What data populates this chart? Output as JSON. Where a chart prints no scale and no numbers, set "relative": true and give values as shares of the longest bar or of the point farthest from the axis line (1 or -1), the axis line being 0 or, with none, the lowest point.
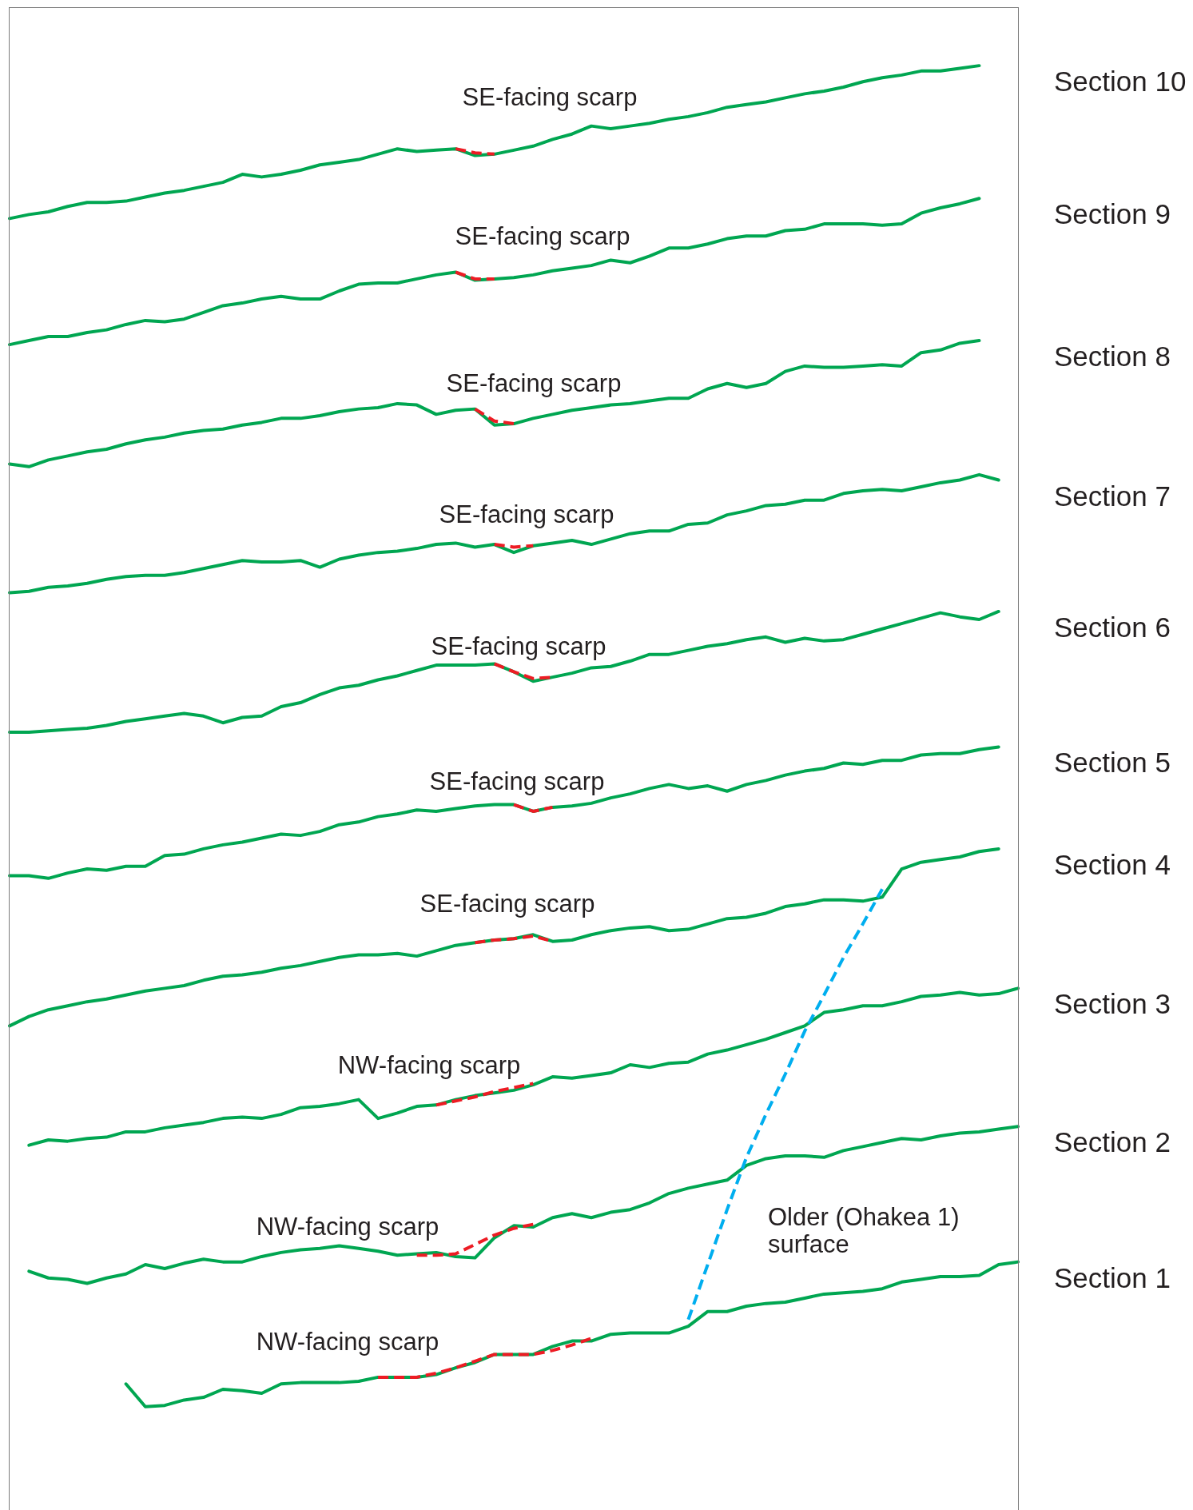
{
  "chart_data": {
    "type": "line",
    "relative": true,
    "categories": [
      null,
      null,
      null,
      null,
      null,
      null,
      null,
      null,
      null,
      null,
      null,
      null,
      null,
      null,
      null,
      null,
      null,
      null,
      null,
      null,
      null,
      null,
      null,
      null,
      null,
      null,
      null,
      null,
      null,
      null,
      null,
      null,
      null,
      null,
      null,
      null,
      null,
      null,
      null,
      null,
      null,
      null,
      null,
      null,
      null,
      null,
      null,
      null,
      null,
      null,
      null,
      null,
      null
    ],
    "series": [
      {
        "name": "Section 10",
        "color": "#00a651",
        "values": [
          0.886,
          0.889,
          0.891,
          0.895,
          0.898,
          0.898,
          0.899,
          0.902,
          0.905,
          0.907,
          0.91,
          0.913,
          0.919,
          0.917,
          0.919,
          0.922,
          0.926,
          0.928,
          0.93,
          0.934,
          0.938,
          0.936,
          0.937,
          0.938,
          0.933,
          0.934,
          0.937,
          0.94,
          0.945,
          0.949,
          0.955,
          0.953,
          0.955,
          0.957,
          0.96,
          0.962,
          0.965,
          0.969,
          0.971,
          0.973,
          0.976,
          0.979,
          0.981,
          0.984,
          0.988,
          0.991,
          0.993,
          0.996,
          0.996,
          0.998,
          1,
          null,
          null
        ]
      },
      {
        "name": "Section 9",
        "color": "#00a651",
        "values": [
          0.792,
          0.795,
          0.798,
          0.798,
          0.801,
          0.803,
          0.807,
          0.81,
          0.809,
          0.811,
          0.816,
          0.821,
          0.823,
          0.826,
          0.828,
          0.826,
          0.826,
          0.832,
          0.837,
          0.838,
          0.838,
          0.841,
          0.844,
          0.846,
          0.84,
          0.841,
          0.842,
          0.844,
          0.847,
          0.849,
          0.851,
          0.855,
          0.853,
          0.858,
          0.864,
          0.864,
          0.867,
          0.871,
          0.873,
          0.873,
          0.877,
          0.878,
          0.882,
          0.882,
          0.882,
          0.881,
          0.882,
          0.89,
          0.894,
          0.897,
          0.901,
          null,
          null
        ]
      },
      {
        "name": "Section 8",
        "color": "#00a651",
        "values": [
          0.703,
          0.701,
          0.706,
          0.709,
          0.712,
          0.714,
          0.718,
          0.721,
          0.723,
          0.726,
          0.728,
          0.729,
          0.732,
          0.734,
          0.737,
          0.737,
          0.739,
          0.742,
          0.744,
          0.745,
          0.748,
          0.747,
          0.74,
          0.743,
          0.744,
          0.732,
          0.733,
          0.737,
          0.74,
          0.743,
          0.745,
          0.747,
          0.748,
          0.75,
          0.752,
          0.752,
          0.759,
          0.763,
          0.76,
          0.763,
          0.772,
          0.776,
          0.775,
          0.775,
          0.776,
          0.777,
          0.776,
          0.786,
          0.788,
          0.793,
          0.795,
          null,
          null
        ]
      },
      {
        "name": "Section 7",
        "color": "#00a651",
        "values": [
          0.607,
          0.608,
          0.611,
          0.612,
          0.614,
          0.617,
          0.619,
          0.62,
          0.62,
          0.622,
          0.625,
          0.628,
          0.631,
          0.63,
          0.63,
          0.631,
          0.626,
          0.632,
          0.635,
          0.637,
          0.638,
          0.64,
          0.643,
          0.644,
          0.641,
          0.643,
          0.637,
          0.642,
          0.644,
          0.646,
          0.643,
          0.647,
          0.651,
          0.653,
          0.653,
          0.658,
          0.659,
          0.665,
          0.668,
          0.672,
          0.673,
          0.676,
          0.676,
          0.681,
          0.683,
          0.684,
          0.683,
          0.686,
          0.689,
          0.691,
          0.695,
          0.691,
          null
        ]
      },
      {
        "name": "Section 6",
        "color": "#00a651",
        "values": [
          0.503,
          0.503,
          0.504,
          0.505,
          0.506,
          0.508,
          0.511,
          0.513,
          0.515,
          0.517,
          0.515,
          0.51,
          0.514,
          0.515,
          0.522,
          0.525,
          0.531,
          0.536,
          0.538,
          0.542,
          0.545,
          0.549,
          0.553,
          0.553,
          0.553,
          0.554,
          0.548,
          0.541,
          0.544,
          0.547,
          0.551,
          0.552,
          0.556,
          0.561,
          0.561,
          0.564,
          0.567,
          0.569,
          0.572,
          0.574,
          0.57,
          0.573,
          0.571,
          0.572,
          0.576,
          0.58,
          0.584,
          0.588,
          0.592,
          0.589,
          0.587,
          0.593,
          null
        ]
      },
      {
        "name": "Section 5",
        "color": "#00a651",
        "values": [
          0.396,
          0.396,
          0.394,
          0.398,
          0.401,
          0.4,
          0.403,
          0.403,
          0.411,
          0.412,
          0.416,
          0.419,
          0.421,
          0.424,
          0.427,
          0.426,
          0.429,
          0.434,
          0.436,
          0.44,
          0.442,
          0.445,
          0.444,
          0.446,
          0.448,
          0.449,
          0.449,
          0.444,
          0.447,
          0.448,
          0.45,
          0.454,
          0.457,
          0.461,
          0.464,
          0.461,
          0.463,
          0.459,
          0.464,
          0.467,
          0.471,
          0.474,
          0.476,
          0.48,
          0.479,
          0.482,
          0.482,
          0.486,
          0.487,
          0.487,
          0.49,
          0.492,
          null
        ]
      },
      {
        "name": "Section 4",
        "color": "#00a651",
        "values": [
          0.284,
          0.291,
          0.296,
          0.299,
          0.302,
          0.304,
          0.307,
          0.31,
          0.312,
          0.314,
          0.318,
          0.321,
          0.322,
          0.324,
          0.327,
          0.329,
          0.332,
          0.335,
          0.337,
          0.337,
          0.338,
          0.336,
          0.34,
          0.344,
          0.346,
          0.348,
          0.349,
          0.352,
          0.347,
          0.348,
          0.352,
          0.355,
          0.357,
          0.358,
          0.355,
          0.356,
          0.36,
          0.364,
          0.365,
          0.368,
          0.373,
          0.375,
          0.378,
          0.378,
          0.377,
          0.38,
          0.401,
          0.406,
          0.408,
          0.41,
          0.414,
          0.416,
          null
        ]
      },
      {
        "name": "Section 3",
        "color": "#00a651",
        "values": [
          null,
          0.195,
          0.199,
          0.198,
          0.2,
          0.201,
          0.205,
          0.205,
          0.208,
          0.21,
          0.212,
          0.215,
          0.216,
          0.215,
          0.218,
          0.223,
          0.224,
          0.226,
          0.229,
          0.215,
          0.219,
          0.224,
          0.225,
          0.229,
          0.232,
          0.234,
          0.236,
          0.24,
          0.246,
          0.245,
          0.247,
          0.249,
          0.255,
          0.253,
          0.256,
          0.257,
          0.263,
          0.266,
          0.27,
          0.274,
          0.279,
          0.284,
          0.294,
          0.296,
          0.299,
          0.299,
          0.302,
          0.306,
          0.307,
          0.309,
          0.307,
          0.308,
          0.312
        ]
      },
      {
        "name": "Section 2",
        "color": "#00a651",
        "values": [
          null,
          0.101,
          0.096,
          0.095,
          0.092,
          0.096,
          0.099,
          0.106,
          0.103,
          0.107,
          0.11,
          0.108,
          0.108,
          0.112,
          0.115,
          0.117,
          0.118,
          0.12,
          0.118,
          0.116,
          0.113,
          0.114,
          0.115,
          0.112,
          0.111,
          0.126,
          0.135,
          0.134,
          0.141,
          0.144,
          0.141,
          0.145,
          0.147,
          0.152,
          0.159,
          0.163,
          0.166,
          0.169,
          0.18,
          0.185,
          0.187,
          0.187,
          0.186,
          0.191,
          0.194,
          0.197,
          0.2,
          0.199,
          0.202,
          0.204,
          0.205,
          0.207,
          0.209
        ]
      },
      {
        "name": "Section 1",
        "color": "#00a651",
        "values": [
          null,
          null,
          null,
          null,
          null,
          null,
          0.017,
          0,
          0.001,
          0.005,
          0.007,
          0.013,
          0.012,
          0.01,
          0.017,
          0.018,
          0.018,
          0.018,
          0.019,
          0.022,
          0.022,
          0.022,
          0.024,
          0.029,
          0.033,
          0.039,
          0.039,
          0.039,
          0.045,
          0.049,
          0.049,
          0.054,
          0.055,
          0.055,
          0.055,
          0.06,
          0.071,
          0.071,
          0.075,
          0.077,
          0.078,
          0.081,
          0.084,
          0.085,
          0.086,
          0.088,
          0.093,
          0.095,
          0.097,
          0.097,
          0.098,
          0.106,
          0.108
        ]
      },
      {
        "color": "#ed1c24",
        "line_style": "dashed",
        "values": [
          null,
          null,
          null,
          null,
          null,
          null,
          null,
          null,
          null,
          null,
          null,
          null,
          null,
          null,
          null,
          null,
          null,
          null,
          null,
          null,
          null,
          null,
          null,
          0.938,
          0.935,
          0.934,
          null,
          null,
          null,
          null,
          null,
          null,
          null,
          null,
          null,
          null,
          null,
          null,
          null,
          null,
          null,
          null,
          null,
          null,
          null,
          null,
          null,
          null,
          null,
          null,
          null,
          null,
          null
        ]
      },
      {
        "color": "#ed1c24",
        "line_style": "dashed",
        "values": [
          null,
          null,
          null,
          null,
          null,
          null,
          null,
          null,
          null,
          null,
          null,
          null,
          null,
          null,
          null,
          null,
          null,
          null,
          null,
          null,
          null,
          null,
          null,
          0.846,
          0.841,
          0.841,
          null,
          null,
          null,
          null,
          null,
          null,
          null,
          null,
          null,
          null,
          null,
          null,
          null,
          null,
          null,
          null,
          null,
          null,
          null,
          null,
          null,
          null,
          null,
          null,
          null,
          null,
          null
        ]
      },
      {
        "color": "#ed1c24",
        "line_style": "dashed",
        "values": [
          null,
          null,
          null,
          null,
          null,
          null,
          null,
          null,
          null,
          null,
          null,
          null,
          null,
          null,
          null,
          null,
          null,
          null,
          null,
          null,
          null,
          null,
          null,
          null,
          0.744,
          0.735,
          0.733,
          null,
          null,
          null,
          null,
          null,
          null,
          null,
          null,
          null,
          null,
          null,
          null,
          null,
          null,
          null,
          null,
          null,
          null,
          null,
          null,
          null,
          null,
          null,
          null,
          null,
          null
        ]
      },
      {
        "color": "#ed1c24",
        "line_style": "dashed",
        "values": [
          null,
          null,
          null,
          null,
          null,
          null,
          null,
          null,
          null,
          null,
          null,
          null,
          null,
          null,
          null,
          null,
          null,
          null,
          null,
          null,
          null,
          null,
          null,
          null,
          null,
          0.643,
          0.641,
          0.642,
          null,
          null,
          null,
          null,
          null,
          null,
          null,
          null,
          null,
          null,
          null,
          null,
          null,
          null,
          null,
          null,
          null,
          null,
          null,
          null,
          null,
          null,
          null,
          null,
          null
        ]
      },
      {
        "color": "#ed1c24",
        "line_style": "dashed",
        "values": [
          null,
          null,
          null,
          null,
          null,
          null,
          null,
          null,
          null,
          null,
          null,
          null,
          null,
          null,
          null,
          null,
          null,
          null,
          null,
          null,
          null,
          null,
          null,
          null,
          null,
          0.554,
          0.548,
          0.543,
          0.544,
          null,
          null,
          null,
          null,
          null,
          null,
          null,
          null,
          null,
          null,
          null,
          null,
          null,
          null,
          null,
          null,
          null,
          null,
          null,
          null,
          null,
          null,
          null,
          null
        ]
      },
      {
        "color": "#ed1c24",
        "line_style": "dashed",
        "values": [
          null,
          null,
          null,
          null,
          null,
          null,
          null,
          null,
          null,
          null,
          null,
          null,
          null,
          null,
          null,
          null,
          null,
          null,
          null,
          null,
          null,
          null,
          null,
          null,
          null,
          null,
          0.449,
          0.444,
          0.447,
          null,
          null,
          null,
          null,
          null,
          null,
          null,
          null,
          null,
          null,
          null,
          null,
          null,
          null,
          null,
          null,
          null,
          null,
          null,
          null,
          null,
          null,
          null,
          null
        ]
      },
      {
        "color": "#ed1c24",
        "line_style": "dashed",
        "values": [
          null,
          null,
          null,
          null,
          null,
          null,
          null,
          null,
          null,
          null,
          null,
          null,
          null,
          null,
          null,
          null,
          null,
          null,
          null,
          null,
          null,
          null,
          null,
          null,
          0.346,
          0.348,
          0.349,
          0.351,
          0.347,
          null,
          null,
          null,
          null,
          null,
          null,
          null,
          null,
          null,
          null,
          null,
          null,
          null,
          null,
          null,
          null,
          null,
          null,
          null,
          null,
          null,
          null,
          null,
          null
        ]
      },
      {
        "color": "#ed1c24",
        "line_style": "dashed",
        "values": [
          null,
          null,
          null,
          null,
          null,
          null,
          null,
          null,
          null,
          null,
          null,
          null,
          null,
          null,
          null,
          null,
          null,
          null,
          null,
          null,
          null,
          null,
          0.225,
          0.228,
          0.231,
          0.235,
          0.238,
          0.241,
          null,
          null,
          null,
          null,
          null,
          null,
          null,
          null,
          null,
          null,
          null,
          null,
          null,
          null,
          null,
          null,
          null,
          null,
          null,
          null,
          null,
          null,
          null,
          null,
          null
        ]
      },
      {
        "color": "#ed1c24",
        "line_style": "dashed",
        "values": [
          null,
          null,
          null,
          null,
          null,
          null,
          null,
          null,
          null,
          null,
          null,
          null,
          null,
          null,
          null,
          null,
          null,
          null,
          null,
          null,
          null,
          0.113,
          0.113,
          0.114,
          0.121,
          0.128,
          0.133,
          0.136,
          null,
          null,
          null,
          null,
          null,
          null,
          null,
          null,
          null,
          null,
          null,
          null,
          null,
          null,
          null,
          null,
          null,
          null,
          null,
          null,
          null,
          null,
          null,
          null,
          null
        ]
      },
      {
        "color": "#ed1c24",
        "line_style": "dashed",
        "values": [
          null,
          null,
          null,
          null,
          null,
          null,
          null,
          null,
          null,
          null,
          null,
          null,
          null,
          null,
          null,
          null,
          null,
          null,
          null,
          0.022,
          0.022,
          0.022,
          0.025,
          0.029,
          0.034,
          0.039,
          0.039,
          0.039,
          0.042,
          0.046,
          0.051,
          null,
          null,
          null,
          null,
          null,
          null,
          null,
          null,
          null,
          null,
          null,
          null,
          null,
          null,
          null,
          null,
          null,
          null,
          null,
          null,
          null,
          null
        ]
      },
      {
        "color": "#00aeef",
        "line_style": "dashed",
        "values": [
          null,
          null,
          null,
          null,
          null,
          null,
          null,
          null,
          null,
          null,
          null,
          null,
          null,
          null,
          null,
          null,
          null,
          null,
          null,
          null,
          null,
          null,
          null,
          null,
          null,
          null,
          null,
          null,
          null,
          null,
          null,
          null,
          null,
          null,
          null,
          0.065,
          0.106,
          0.147,
          0.186,
          0.218,
          0.248,
          0.28,
          0.307,
          0.335,
          0.36,
          0.386,
          null,
          null,
          null,
          null,
          null,
          null,
          null
        ]
      }
    ],
    "annotations": [
      "SE-facing scarp",
      "SE-facing scarp",
      "SE-facing scarp",
      "SE-facing scarp",
      "SE-facing scarp",
      "SE-facing scarp",
      "SE-facing scarp",
      "NW-facing scarp",
      "NW-facing scarp",
      "NW-facing scarp",
      "Older (Ohakea 1) surface"
    ]
  }
}
